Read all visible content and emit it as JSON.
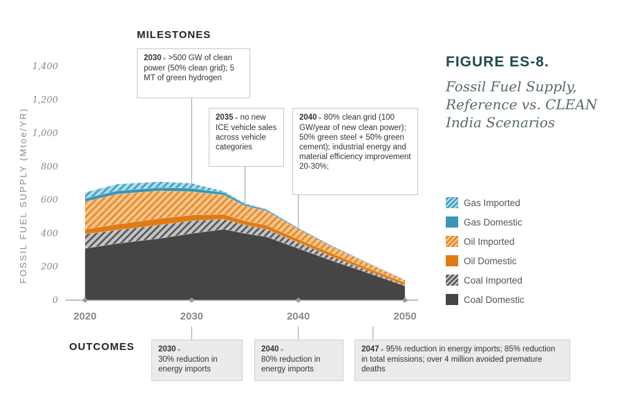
{
  "figure": {
    "label": "FIGURE ES-8.",
    "subtitle": "Fossil Fuel Supply, Reference vs. CLEAN India Scenarios"
  },
  "milestones": {
    "title": "MILESTONES",
    "items": [
      {
        "year": "2030",
        "text": ">500 GW of clean power (50% clean grid); 5 MT of green hydrogen"
      },
      {
        "year": "2035",
        "text": "no new ICE vehicle sales across vehicle categories"
      },
      {
        "year": "2040",
        "text": "80% clean grid (100 GW/year of new clean power); 50% green steel + 50% green cement); industrial energy and material efficiency improvement 20-30%;"
      }
    ]
  },
  "outcomes": {
    "title": "OUTCOMES",
    "items": [
      {
        "year": "2030",
        "text": "30% reduction in energy imports"
      },
      {
        "year": "2040",
        "text": "80% reduction in energy imports"
      },
      {
        "year": "2047",
        "text": "95% reduction in energy imports; 85% reduction in total emissions; over 4 million avoided premature deaths"
      }
    ]
  },
  "colors": {
    "coal_domestic": "#454545",
    "coal_imported": "#a9a9a9",
    "oil_domestic": "#e07b14",
    "oil_imported": "#f0a348",
    "gas_domestic": "#3b95b6",
    "gas_imported": "#7cc0da"
  },
  "chart_data": {
    "type": "area",
    "stacked": true,
    "ylabel": "FOSSIL FUEL SUPPLY (Mtoe/YR)",
    "ylim": [
      0,
      1400
    ],
    "yticks": [
      "0",
      "200",
      "400",
      "600",
      "800",
      "1,000",
      "1,200",
      "1,400"
    ],
    "xlim": [
      2020,
      2050
    ],
    "xticks": [
      "2020",
      "2030",
      "2040",
      "2050"
    ],
    "x": [
      2020,
      2023,
      2027,
      2030,
      2033,
      2035,
      2037,
      2040,
      2043,
      2046,
      2050
    ],
    "series": [
      {
        "name": "Coal Domestic",
        "values": [
          310,
          340,
          370,
          400,
          425,
          400,
          380,
          310,
          240,
          175,
          85
        ]
      },
      {
        "name": "Coal Imported",
        "values": [
          85,
          80,
          80,
          75,
          60,
          50,
          45,
          35,
          25,
          15,
          5
        ]
      },
      {
        "name": "Oil Domestic",
        "values": [
          30,
          35,
          40,
          35,
          30,
          25,
          25,
          20,
          20,
          15,
          15
        ]
      },
      {
        "name": "Oil Imported",
        "values": [
          165,
          180,
          165,
          140,
          115,
          90,
          85,
          60,
          40,
          30,
          15
        ]
      },
      {
        "name": "Gas Domestic",
        "values": [
          20,
          20,
          20,
          20,
          15,
          10,
          8,
          6,
          5,
          4,
          2
        ]
      },
      {
        "name": "Gas Imported",
        "values": [
          35,
          40,
          35,
          30,
          8,
          5,
          3,
          2,
          2,
          1,
          1
        ]
      }
    ]
  }
}
